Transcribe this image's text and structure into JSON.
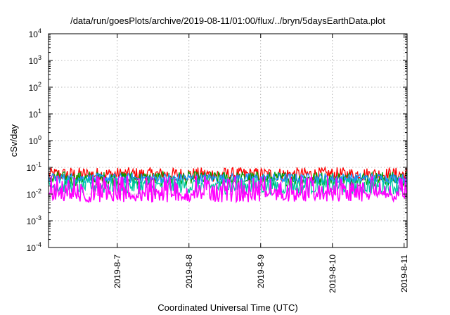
{
  "chart_data": {
    "type": "line",
    "title": "/data/run/goesPlots/archive/2019-08-11/01:00/flux/../bryn/5daysEarthData.plot",
    "xlabel": "Coordinated Universal Time (UTC)",
    "ylabel": "cSv/day",
    "yscale": "log",
    "ylim": [
      0.0001,
      10000
    ],
    "y_ticks": [
      {
        "value": 0.0001,
        "mantissa": "10",
        "exp": "-4"
      },
      {
        "value": 0.001,
        "mantissa": "10",
        "exp": "-3"
      },
      {
        "value": 0.01,
        "mantissa": "10",
        "exp": "-2"
      },
      {
        "value": 0.1,
        "mantissa": "10",
        "exp": "-1"
      },
      {
        "value": 1,
        "mantissa": "10",
        "exp": "0"
      },
      {
        "value": 10,
        "mantissa": "10",
        "exp": "1"
      },
      {
        "value": 100,
        "mantissa": "10",
        "exp": "2"
      },
      {
        "value": 1000,
        "mantissa": "10",
        "exp": "3"
      },
      {
        "value": 10000,
        "mantissa": "10",
        "exp": "4"
      }
    ],
    "x_range": [
      "2019-08-06 01:00",
      "2019-08-11 01:00"
    ],
    "x_ticks": [
      {
        "label": "2019-8-7",
        "date": "2019-08-07 00:00"
      },
      {
        "label": "2019-8-8",
        "date": "2019-08-08 00:00"
      },
      {
        "label": "2019-8-9",
        "date": "2019-08-09 00:00"
      },
      {
        "label": "2019-8-10",
        "date": "2019-08-10 00:00"
      },
      {
        "label": "2019-8-11",
        "date": "2019-08-11 00:00"
      }
    ],
    "grid": true,
    "series": [
      {
        "color": "#ff0000",
        "typical_range": [
          0.03,
          0.1
        ]
      },
      {
        "color": "#00a000",
        "typical_range": [
          0.02,
          0.07
        ]
      },
      {
        "color": "#1e90ff",
        "typical_range": [
          0.025,
          0.06
        ]
      },
      {
        "color": "#00c8a0",
        "typical_range": [
          0.01,
          0.04
        ]
      },
      {
        "color": "#ff00ff",
        "typical_range": [
          0.005,
          0.05
        ]
      }
    ]
  }
}
